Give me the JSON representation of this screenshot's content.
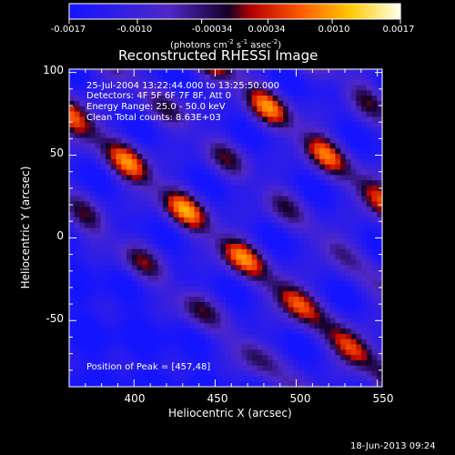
{
  "chart_data": {
    "type": "heatmap",
    "title": "Reconstructed RHESSI Image",
    "xlabel": "Heliocentric X (arcsec)",
    "ylabel": "Heliocentric Y (arcsec)",
    "xlim": [
      360,
      553
    ],
    "ylim": [
      -90,
      102
    ],
    "xticks": [
      "400",
      "450",
      "500",
      "550"
    ],
    "yticks": [
      "100",
      "50",
      "0",
      "-50"
    ],
    "peak_position": [
      457,
      48
    ],
    "stripes": {
      "direction_slope": -0.81,
      "band_centers_offset": [
        -105,
        -52,
        0,
        52,
        105
      ],
      "band_strength": [
        0.6,
        1.0,
        0.55,
        0.95,
        0.6
      ]
    },
    "colorbar": {
      "min": -0.0017,
      "max": 0.0017,
      "tick_labels": [
        "-0.0017",
        "-0.0010",
        "-0.00034",
        "0.00034",
        "0.0010",
        "0.0017"
      ],
      "tick_values": [
        -0.0017,
        -0.001,
        -0.00034,
        0.00034,
        0.001,
        0.0017
      ],
      "units_main": "(photons cm",
      "units_exp1": "-2",
      "units_mid": " s",
      "units_exp2": "-1",
      "units_mid2": " asec",
      "units_exp3": "-2",
      "units_end": ")"
    }
  },
  "annotations": {
    "time_range": "25-Jul-2004 13:22:44.000 to 13:25:50.000",
    "detectors": "Detectors: 4F 5F 6F 7F 8F, Att 0",
    "energy_range": "Energy Range: 25.0 - 50.0 keV",
    "clean": "Clean    Total counts: 8.63E+03",
    "peak": "Position of Peak = [457,48]"
  },
  "footer_date": "18-Jun-2013 09:24"
}
